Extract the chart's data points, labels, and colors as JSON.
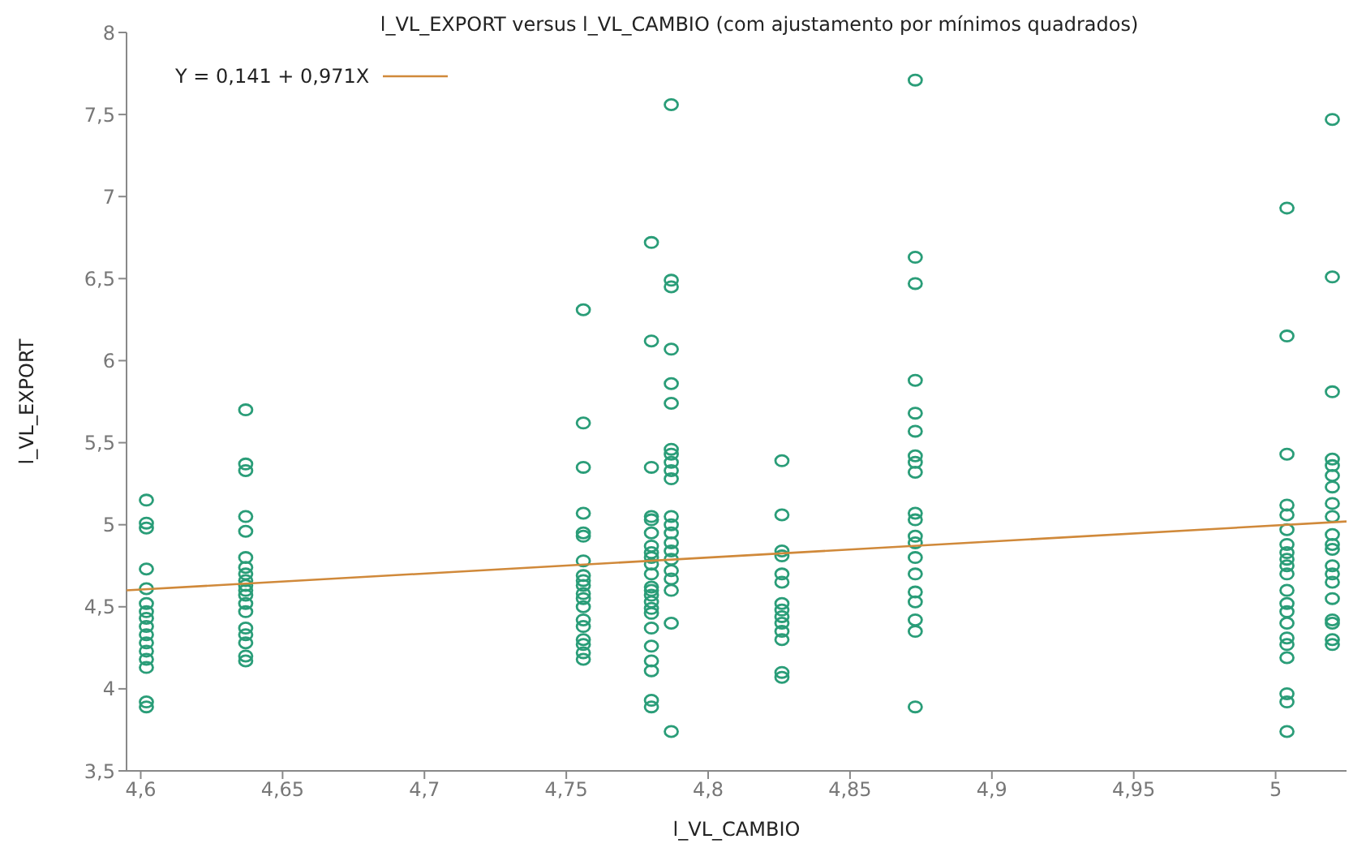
{
  "chart_data": {
    "type": "scatter",
    "title": "l_VL_EXPORT versus l_VL_CAMBIO (com ajustamento por mínimos quadrados)",
    "xlabel": "l_VL_CAMBIO",
    "ylabel": "l_VL_EXPORT",
    "xlim": [
      4.595,
      5.025
    ],
    "xticks": [
      {
        "value": 4.6,
        "label": "4,6"
      },
      {
        "value": 4.65,
        "label": "4,65"
      },
      {
        "value": 4.7,
        "label": "4,7"
      },
      {
        "value": 4.75,
        "label": "4,75"
      },
      {
        "value": 4.8,
        "label": "4,8"
      },
      {
        "value": 4.85,
        "label": "4,85"
      },
      {
        "value": 4.9,
        "label": "4,9"
      },
      {
        "value": 4.95,
        "label": "4,95"
      },
      {
        "value": 5,
        "label": "5"
      }
    ],
    "ylim": [
      3.5,
      8
    ],
    "yticks": [
      {
        "value": 3.5,
        "label": "3,5"
      },
      4,
      {
        "value": 4.5,
        "label": "4,5"
      },
      5,
      {
        "value": 5.5,
        "label": "5,5"
      },
      6,
      {
        "value": 6.5,
        "label": "6,5"
      },
      7,
      {
        "value": 7.5,
        "label": "7,5"
      },
      8
    ],
    "marker": "circle",
    "legend": "top left",
    "series": [
      {
        "color": "#2a9d78",
        "x": [
          4.602,
          4.602,
          4.602,
          4.602,
          4.602,
          4.602,
          4.602,
          4.602,
          4.602,
          4.602,
          4.602,
          4.602,
          4.602,
          4.602,
          4.602,
          4.602
        ],
        "values": [
          5.15,
          5.01,
          4.98,
          4.73,
          4.61,
          4.52,
          4.47,
          4.43,
          4.38,
          4.33,
          4.28,
          4.23,
          4.18,
          4.13,
          3.92,
          3.89
        ]
      },
      {
        "color": "#2a9d78",
        "x": [
          4.637,
          4.637,
          4.637,
          4.637,
          4.637,
          4.637,
          4.637,
          4.637,
          4.637,
          4.637,
          4.637,
          4.637,
          4.637,
          4.637,
          4.637,
          4.637,
          4.637,
          4.637,
          4.637
        ],
        "values": [
          5.7,
          5.37,
          5.33,
          5.05,
          4.96,
          4.8,
          4.74,
          4.7,
          4.66,
          4.63,
          4.6,
          4.57,
          4.52,
          4.47,
          4.37,
          4.33,
          4.28,
          4.2,
          4.17
        ]
      },
      {
        "color": "#2a9d78",
        "x": [
          4.756,
          4.756,
          4.756,
          4.756,
          4.756,
          4.756,
          4.756,
          4.756,
          4.756,
          4.756,
          4.756,
          4.756,
          4.756,
          4.756,
          4.756,
          4.756,
          4.756,
          4.756,
          4.756
        ],
        "values": [
          6.31,
          5.62,
          5.35,
          5.07,
          4.95,
          4.93,
          4.78,
          4.69,
          4.66,
          4.63,
          4.58,
          4.55,
          4.5,
          4.42,
          4.38,
          4.3,
          4.27,
          4.22,
          4.18
        ]
      },
      {
        "color": "#2a9d78",
        "x": [
          4.78,
          4.78,
          4.78,
          4.78,
          4.78,
          4.78,
          4.78,
          4.78,
          4.78,
          4.78,
          4.78,
          4.78,
          4.78,
          4.78,
          4.78,
          4.78,
          4.78,
          4.78,
          4.78,
          4.78,
          4.78,
          4.78,
          4.78
        ],
        "values": [
          6.72,
          6.12,
          5.35,
          5.05,
          5.03,
          4.95,
          4.87,
          4.83,
          4.8,
          4.76,
          4.7,
          4.62,
          4.6,
          4.57,
          4.53,
          4.49,
          4.46,
          4.37,
          4.26,
          4.17,
          4.11,
          3.93,
          3.89
        ]
      },
      {
        "color": "#2a9d78",
        "x": [
          4.787,
          4.787,
          4.787,
          4.787,
          4.787,
          4.787,
          4.787,
          4.787,
          4.787,
          4.787,
          4.787,
          4.787,
          4.787,
          4.787,
          4.787,
          4.787,
          4.787,
          4.787,
          4.787,
          4.787,
          4.787,
          4.787
        ],
        "values": [
          7.56,
          6.49,
          6.45,
          6.07,
          5.86,
          5.74,
          5.46,
          5.43,
          5.38,
          5.33,
          5.28,
          5.05,
          5.0,
          4.95,
          4.89,
          4.84,
          4.79,
          4.72,
          4.67,
          4.6,
          4.4,
          3.74
        ]
      },
      {
        "color": "#2a9d78",
        "x": [
          4.826,
          4.826,
          4.826,
          4.826,
          4.826,
          4.826,
          4.826,
          4.826,
          4.826,
          4.826,
          4.826,
          4.826,
          4.826,
          4.826
        ],
        "values": [
          5.39,
          5.06,
          4.84,
          4.81,
          4.7,
          4.65,
          4.52,
          4.48,
          4.44,
          4.4,
          4.35,
          4.3,
          4.1,
          4.07
        ]
      },
      {
        "color": "#2a9d78",
        "x": [
          4.873,
          4.873,
          4.873,
          4.873,
          4.873,
          4.873,
          4.873,
          4.873,
          4.873,
          4.873,
          4.873,
          4.873,
          4.873,
          4.873,
          4.873,
          4.873,
          4.873,
          4.873,
          4.873,
          4.873
        ],
        "values": [
          7.71,
          6.63,
          6.47,
          5.88,
          5.68,
          5.57,
          5.42,
          5.38,
          5.32,
          5.07,
          5.03,
          4.93,
          4.89,
          4.8,
          4.7,
          4.59,
          4.53,
          4.42,
          4.35,
          3.89
        ]
      },
      {
        "color": "#2a9d78",
        "x": [
          5.004,
          5.004,
          5.004,
          5.004,
          5.004,
          5.004,
          5.004,
          5.004,
          5.004,
          5.004,
          5.004,
          5.004,
          5.004,
          5.004,
          5.004,
          5.004,
          5.004,
          5.004,
          5.004,
          5.004,
          5.004
        ],
        "values": [
          6.93,
          6.15,
          5.43,
          5.12,
          5.06,
          4.97,
          4.88,
          4.83,
          4.79,
          4.75,
          4.7,
          4.6,
          4.52,
          4.47,
          4.4,
          4.31,
          4.27,
          4.19,
          3.97,
          3.92,
          3.74
        ]
      },
      {
        "color": "#2a9d78",
        "x": [
          5.02,
          5.02,
          5.02,
          5.02,
          5.02,
          5.02,
          5.02,
          5.02,
          5.02,
          5.02,
          5.02,
          5.02,
          5.02,
          5.02,
          5.02,
          5.02,
          5.02,
          5.02,
          5.02,
          5.02
        ],
        "values": [
          7.47,
          6.51,
          5.81,
          5.4,
          5.36,
          5.3,
          5.23,
          5.13,
          5.05,
          4.94,
          4.88,
          4.85,
          4.75,
          4.7,
          4.65,
          4.55,
          4.42,
          4.4,
          4.3,
          4.27
        ]
      },
      {
        "type": "line",
        "name": "Y = 0,141 + 0,971X",
        "marker": "none",
        "color": "#d0893a",
        "x": [
          4.595,
          5.025
        ],
        "values": [
          4.6,
          5.02
        ]
      }
    ]
  }
}
